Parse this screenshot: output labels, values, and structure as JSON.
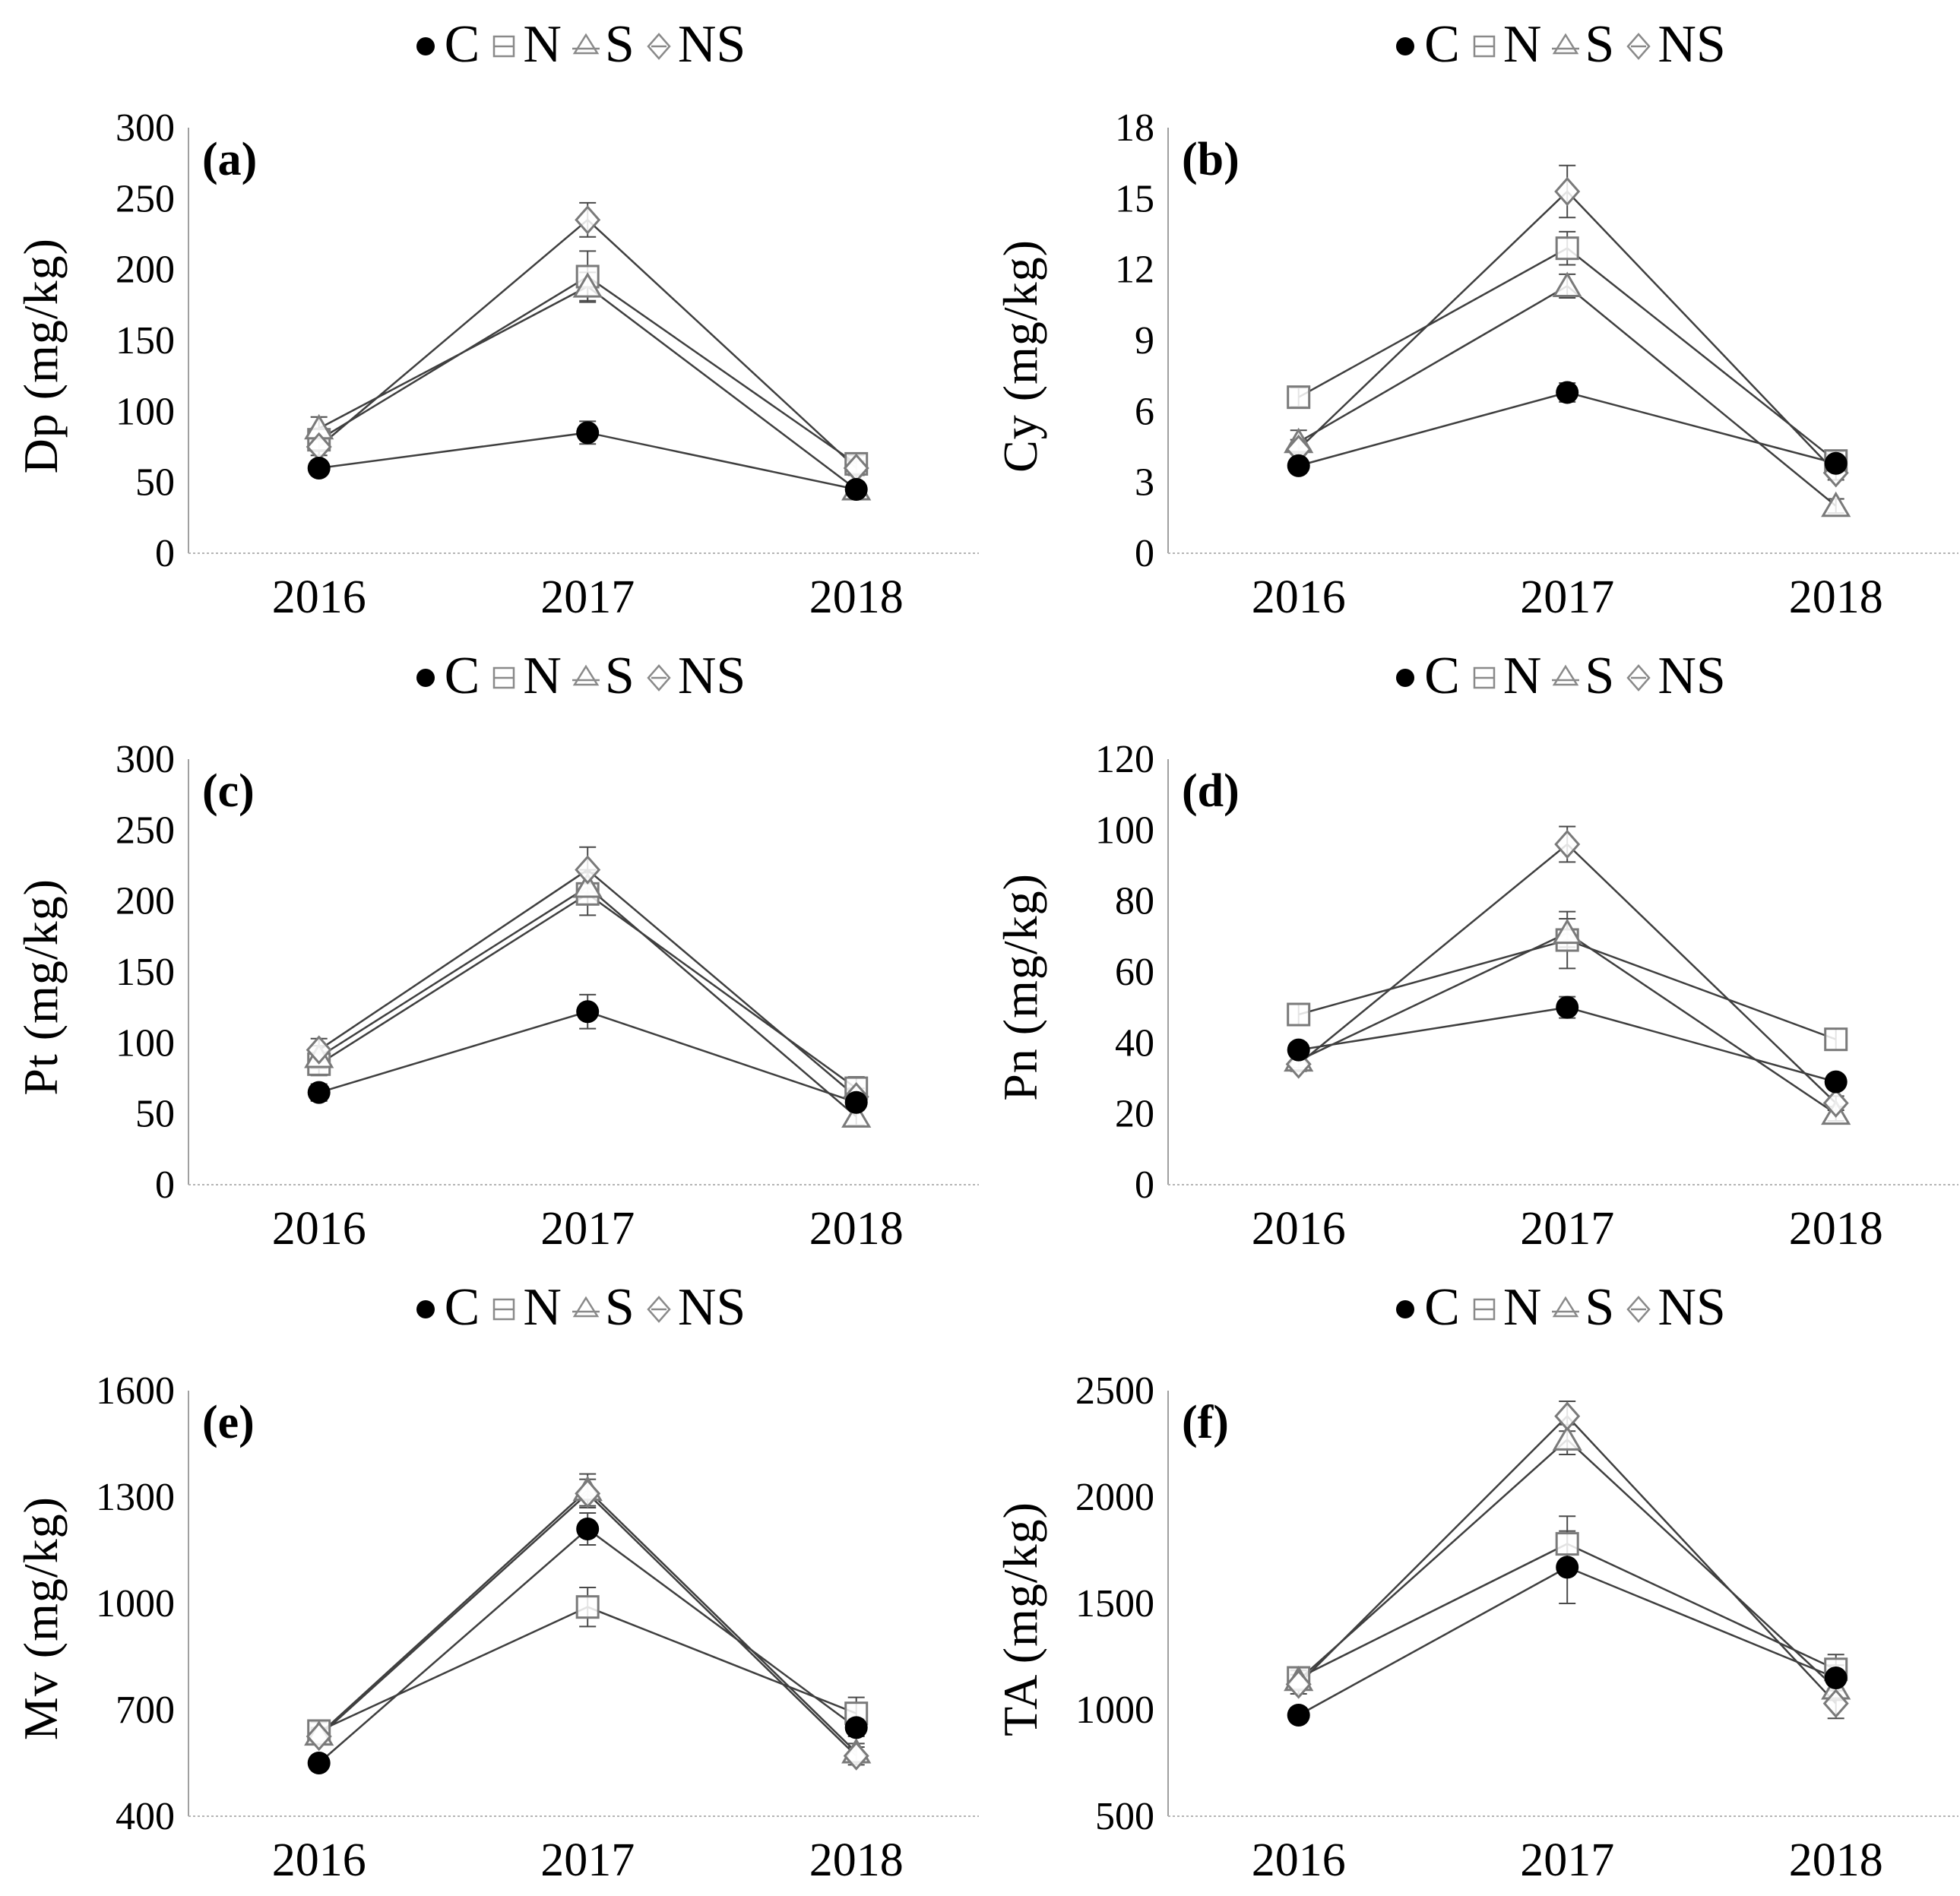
{
  "figure": {
    "series_names": [
      "C",
      "N",
      "S",
      "NS"
    ],
    "markers": {
      "C": "filled-circle",
      "N": "open-square",
      "S": "open-triangle",
      "NS": "open-diamond"
    },
    "colors": {
      "line": "#3f3f3f",
      "marker_stroke": "#7a7a7a",
      "marker_fill": "#ffffff",
      "filled_marker": "#000000",
      "error_bar": "#4a4a4a",
      "y_axis": "#a0a0a0",
      "x_axis": "#b5b5b5",
      "text": "#000000"
    }
  },
  "chart_data": [
    {
      "type": "line",
      "panel_label": "(a)",
      "ylabel": "Dp (mg/kg)",
      "xlabel": "",
      "categories": [
        "2016",
        "2017",
        "2018"
      ],
      "ylim": [
        0,
        300
      ],
      "yticks": [
        0,
        50,
        100,
        150,
        200,
        250,
        300
      ],
      "grid": false,
      "legend_position": "top",
      "series": [
        {
          "name": "C",
          "marker": "filled-circle",
          "values": [
            60,
            85,
            45
          ],
          "errors": [
            5,
            8,
            5
          ]
        },
        {
          "name": "N",
          "marker": "open-square",
          "values": [
            80,
            195,
            63
          ],
          "errors": [
            8,
            18,
            6
          ]
        },
        {
          "name": "S",
          "marker": "open-triangle",
          "values": [
            88,
            188,
            45
          ],
          "errors": [
            8,
            10,
            5
          ]
        },
        {
          "name": "NS",
          "marker": "open-diamond",
          "values": [
            75,
            235,
            60
          ],
          "errors": [
            6,
            12,
            5
          ]
        }
      ]
    },
    {
      "type": "line",
      "panel_label": "(b)",
      "ylabel": "Cy (mg/kg)",
      "xlabel": "",
      "categories": [
        "2016",
        "2017",
        "2018"
      ],
      "ylim": [
        0,
        18
      ],
      "yticks": [
        0,
        3,
        6,
        9,
        12,
        15,
        18
      ],
      "grid": false,
      "legend_position": "top",
      "series": [
        {
          "name": "C",
          "marker": "filled-circle",
          "values": [
            3.7,
            6.8,
            3.8
          ],
          "errors": [
            0.3,
            0.4,
            0.3
          ]
        },
        {
          "name": "N",
          "marker": "open-square",
          "values": [
            6.6,
            12.9,
            3.9
          ],
          "errors": [
            0.4,
            0.7,
            0.4
          ]
        },
        {
          "name": "S",
          "marker": "open-triangle",
          "values": [
            4.7,
            11.3,
            2.0
          ],
          "errors": [
            0.5,
            0.5,
            0.3
          ]
        },
        {
          "name": "NS",
          "marker": "open-diamond",
          "values": [
            4.4,
            15.3,
            3.4
          ],
          "errors": [
            0.4,
            1.1,
            0.3
          ]
        }
      ]
    },
    {
      "type": "line",
      "panel_label": "(c)",
      "ylabel": "Pt (mg/kg)",
      "xlabel": "",
      "categories": [
        "2016",
        "2017",
        "2018"
      ],
      "ylim": [
        0,
        300
      ],
      "yticks": [
        0,
        50,
        100,
        150,
        200,
        250,
        300
      ],
      "grid": false,
      "legend_position": "top",
      "series": [
        {
          "name": "C",
          "marker": "filled-circle",
          "values": [
            65,
            122,
            58
          ],
          "errors": [
            6,
            12,
            5
          ]
        },
        {
          "name": "N",
          "marker": "open-square",
          "values": [
            85,
            205,
            68
          ],
          "errors": [
            8,
            15,
            8
          ]
        },
        {
          "name": "S",
          "marker": "open-triangle",
          "values": [
            90,
            210,
            48
          ],
          "errors": [
            8,
            12,
            6
          ]
        },
        {
          "name": "NS",
          "marker": "open-diamond",
          "values": [
            95,
            222,
            62
          ],
          "errors": [
            8,
            16,
            6
          ]
        }
      ]
    },
    {
      "type": "line",
      "panel_label": "(d)",
      "ylabel": "Pn (mg/kg)",
      "xlabel": "",
      "categories": [
        "2016",
        "2017",
        "2018"
      ],
      "ylim": [
        0,
        120
      ],
      "yticks": [
        0,
        20,
        40,
        60,
        80,
        100,
        120
      ],
      "grid": false,
      "legend_position": "top",
      "series": [
        {
          "name": "C",
          "marker": "filled-circle",
          "values": [
            38,
            50,
            29
          ],
          "errors": [
            2,
            3,
            2
          ]
        },
        {
          "name": "N",
          "marker": "open-square",
          "values": [
            48,
            69,
            41
          ],
          "errors": [
            3,
            8,
            3
          ]
        },
        {
          "name": "S",
          "marker": "open-triangle",
          "values": [
            35,
            71,
            20
          ],
          "errors": [
            2,
            4,
            2
          ]
        },
        {
          "name": "NS",
          "marker": "open-diamond",
          "values": [
            34,
            96,
            23
          ],
          "errors": [
            2,
            5,
            2
          ]
        }
      ]
    },
    {
      "type": "line",
      "panel_label": "(e)",
      "ylabel": "Mv (mg/kg)",
      "xlabel": "",
      "categories": [
        "2016",
        "2017",
        "2018"
      ],
      "ylim": [
        400,
        1600
      ],
      "yticks": [
        400,
        700,
        1000,
        1300,
        1600
      ],
      "grid": false,
      "legend_position": "top",
      "series": [
        {
          "name": "C",
          "marker": "filled-circle",
          "values": [
            550,
            1210,
            650
          ],
          "errors": [
            15,
            45,
            25
          ]
        },
        {
          "name": "N",
          "marker": "open-square",
          "values": [
            640,
            990,
            690
          ],
          "errors": [
            25,
            55,
            45
          ]
        },
        {
          "name": "S",
          "marker": "open-triangle",
          "values": [
            630,
            1320,
            580
          ],
          "errors": [
            20,
            45,
            25
          ]
        },
        {
          "name": "NS",
          "marker": "open-diamond",
          "values": [
            625,
            1310,
            570
          ],
          "errors": [
            20,
            40,
            25
          ]
        }
      ]
    },
    {
      "type": "line",
      "panel_label": "(f)",
      "ylabel": "TA (mg/kg)",
      "xlabel": "",
      "categories": [
        "2016",
        "2017",
        "2018"
      ],
      "ylim": [
        500,
        2500
      ],
      "yticks": [
        500,
        1000,
        1500,
        2000,
        2500
      ],
      "grid": false,
      "legend_position": "top",
      "series": [
        {
          "name": "C",
          "marker": "filled-circle",
          "values": [
            975,
            1670,
            1150
          ],
          "errors": [
            35,
            170,
            60
          ]
        },
        {
          "name": "N",
          "marker": "open-square",
          "values": [
            1150,
            1780,
            1190
          ],
          "errors": [
            45,
            130,
            70
          ]
        },
        {
          "name": "S",
          "marker": "open-triangle",
          "values": [
            1140,
            2270,
            1100
          ],
          "errors": [
            45,
            70,
            55
          ]
        },
        {
          "name": "NS",
          "marker": "open-diamond",
          "values": [
            1120,
            2380,
            1030
          ],
          "errors": [
            45,
            70,
            70
          ]
        }
      ]
    }
  ]
}
